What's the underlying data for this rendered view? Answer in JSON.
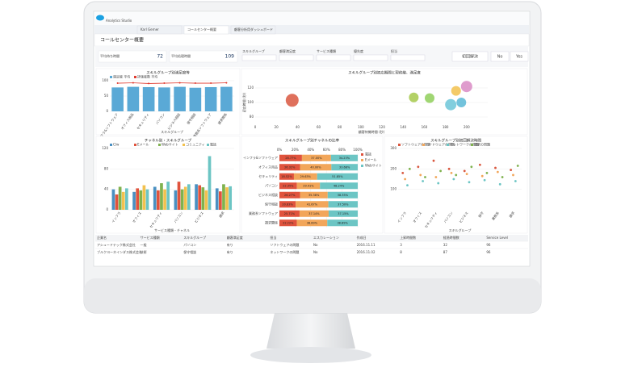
{
  "app": {
    "brand": "Analytics Studio",
    "tabs": [
      "Karl Gerner",
      "コールセンター概要",
      "顧客分析用ダッシュボード"
    ]
  },
  "dashboard": {
    "title": "コールセンター概要",
    "kpis": [
      {
        "label": "平均待ち時間",
        "value": 72
      },
      {
        "label": "平均処理時間",
        "value": 109
      }
    ],
    "filters": [
      "スキルグループ",
      "顧客満足度",
      "サービス種類",
      "優先度",
      "担当"
    ],
    "toggle": [
      "初回解決",
      "No",
      "Yes"
    ]
  },
  "chart_data": [
    {
      "type": "bar",
      "title": "スキルグループ別満足度等",
      "categories": [
        "インフラ&ソフトウェア",
        "オフィス用品",
        "セキュリティ",
        "パソコン",
        "ビジネス相談",
        "保守相談",
        "業務系ソフトウェア",
        "請求関係"
      ],
      "series": [
        {
          "name": "満足度 平均",
          "color": "#5aa9d6",
          "mark": "bar",
          "values": [
            78,
            80,
            79,
            78,
            80,
            77,
            79,
            80
          ]
        },
        {
          "name": "評価者数 平均",
          "color": "#e03c31",
          "mark": "line",
          "values": [
            92,
            93,
            91,
            92,
            93,
            92,
            92,
            93
          ]
        }
      ],
      "ylim": [
        0,
        100
      ],
      "yticks": [
        0,
        50,
        100
      ],
      "xlabel": "スキルグループ"
    },
    {
      "type": "bubble",
      "title": "スキルグループ別初応期間と契約継、満足度",
      "x": [
        35,
        150,
        165,
        185,
        190,
        200,
        195
      ],
      "values": [
        103,
        107,
        106,
        97,
        116,
        122,
        100
      ],
      "sizes": [
        8,
        6,
        6,
        7,
        6,
        7,
        6
      ],
      "colors": [
        "#d9573f",
        "#a6c94b",
        "#8fcf5a",
        "#6cc5d8",
        "#f2c14e",
        "#d98bc4",
        "#5ab8d6"
      ],
      "xlim": [
        0,
        220
      ],
      "xticks": [
        0,
        20,
        40,
        60,
        80,
        100,
        120,
        140,
        160,
        180,
        200
      ],
      "ylim": [
        70,
        130
      ],
      "yticks": [
        80,
        100,
        120
      ],
      "xlabel": "顧客待機時間 (秒)",
      "ylabel": "初応時間 (秒)"
    },
    {
      "type": "grouped",
      "title": "チャネル別・スキルグループ",
      "categories": [
        "インフラ",
        "オフィス",
        "セキュリティ",
        "パソコン",
        "ビジネス",
        "請求"
      ],
      "series": [
        {
          "name": "C/w",
          "color": "#4a90c2",
          "values": [
            40,
            35,
            45,
            38,
            50,
            42
          ]
        },
        {
          "name": "Eメール",
          "color": "#e0533d",
          "values": [
            30,
            42,
            38,
            55,
            48,
            36
          ]
        },
        {
          "name": "Webサイト",
          "color": "#7fb24e",
          "values": [
            45,
            38,
            52,
            40,
            44,
            50
          ]
        },
        {
          "name": "コミュニティ",
          "color": "#f2c14e",
          "values": [
            35,
            48,
            40,
            45,
            38,
            44
          ]
        },
        {
          "name": "電話",
          "color": "#6cc5c4",
          "values": [
            42,
            40,
            55,
            50,
            105,
            46
          ]
        }
      ],
      "ylim": [
        0,
        120
      ],
      "yticks": [
        0,
        40,
        80,
        120
      ],
      "xlabel": "サービス種類・チャネル"
    },
    {
      "type": "hstack",
      "title": "スキルグループ別チャネルの比率",
      "categories": [
        "インフラ&ソフトウェア",
        "オフィス用品",
        "セキュリティ",
        "パソコン",
        "ビジネス相談",
        "保守相談",
        "業務系ソフトウェア",
        "請求関係"
      ],
      "series": [
        {
          "name": "電話",
          "color": "#e0533d",
          "values": [
            28.77,
            26.32,
            18.52,
            22.35,
            26.27,
            20.83,
            25.71,
            22.22
          ],
          "value_labels": [
            "28.77%",
            "26.32%",
            "18.52%",
            "22.35%",
            "26.27%",
            "20.83%",
            "25.71%",
            "22.22%"
          ]
        },
        {
          "name": "Eメール",
          "color": "#f2a65a",
          "values": [
            37.0,
            40.0,
            29.63,
            29.41,
            35.38,
            41.67,
            37.14,
            38.89
          ],
          "value_labels": [
            "37.00%",
            "40.00%",
            "29.63%",
            "29.41%",
            "35.38%",
            "41.67%",
            "37.14%",
            "38.89%"
          ]
        },
        {
          "name": "Webサイト",
          "color": "#6cc5c4",
          "values": [
            34.23,
            33.68,
            51.85,
            48.24,
            38.35,
            37.5,
            37.15,
            38.89
          ],
          "value_labels": [
            "34.23%",
            "33.68%",
            "51.85%",
            "48.24%",
            "38.35%",
            "37.50%",
            "37.15%",
            "38.89%"
          ]
        }
      ],
      "xlim": [
        0,
        100
      ],
      "xticks": [
        {
          "value": 0,
          "label": "0%"
        },
        {
          "value": 20,
          "label": "20%"
        },
        {
          "value": 40,
          "label": "40%"
        },
        {
          "value": 60,
          "label": "60%"
        },
        {
          "value": 80,
          "label": "80%"
        },
        {
          "value": 100,
          "label": "100%"
        }
      ]
    },
    {
      "type": "dots",
      "title": "スキルグループ別初回解決時間",
      "categories": [
        "インフラ",
        "オフィス",
        "セキュリティ",
        "パソコン",
        "ビジネス",
        "保守",
        "業務系",
        "請求"
      ],
      "series": [
        {
          "name": "ソフトウェアの問題",
          "color": "#d9573f",
          "values": [
            180,
            210,
            240,
            200,
            190,
            220,
            205,
            195
          ]
        },
        {
          "name": "ハードウェアの問題",
          "color": "#f2a65a",
          "values": [
            150,
            170,
            160,
            180,
            175,
            165,
            185,
            170
          ]
        },
        {
          "name": "ネットワークの問題",
          "color": "#6cc5c4",
          "values": [
            120,
            140,
            130,
            150,
            135,
            145,
            125,
            140
          ]
        },
        {
          "name": "請求の問題",
          "color": "#7fb24e",
          "values": [
            200,
            160,
            190,
            170,
            210,
            180,
            160,
            215
          ]
        }
      ],
      "ylim": [
        0,
        300
      ],
      "yticks": [
        100,
        200,
        300
      ],
      "xlabel": "スキルグループ"
    }
  ],
  "table": {
    "headers": [
      "企業名",
      "サービス種類",
      "スキルグループ",
      "顧客満足度",
      "担当",
      "エスカレーション",
      "作成日",
      "上昇時間数",
      "経過時間数",
      "Service Level"
    ],
    "rows": [
      [
        "アシュードテック株式会社",
        "一般",
        "パソコン",
        "有り",
        "ソフトウェアの問題",
        "No",
        "2016.11.11",
        "3",
        "32",
        "96"
      ],
      [
        "ブルクヨーネインダス株式会社",
        "技術",
        "保守相談",
        "有り",
        "ネットワークの問題",
        "No",
        "2016.11.02",
        "8",
        "87",
        "96"
      ]
    ]
  }
}
